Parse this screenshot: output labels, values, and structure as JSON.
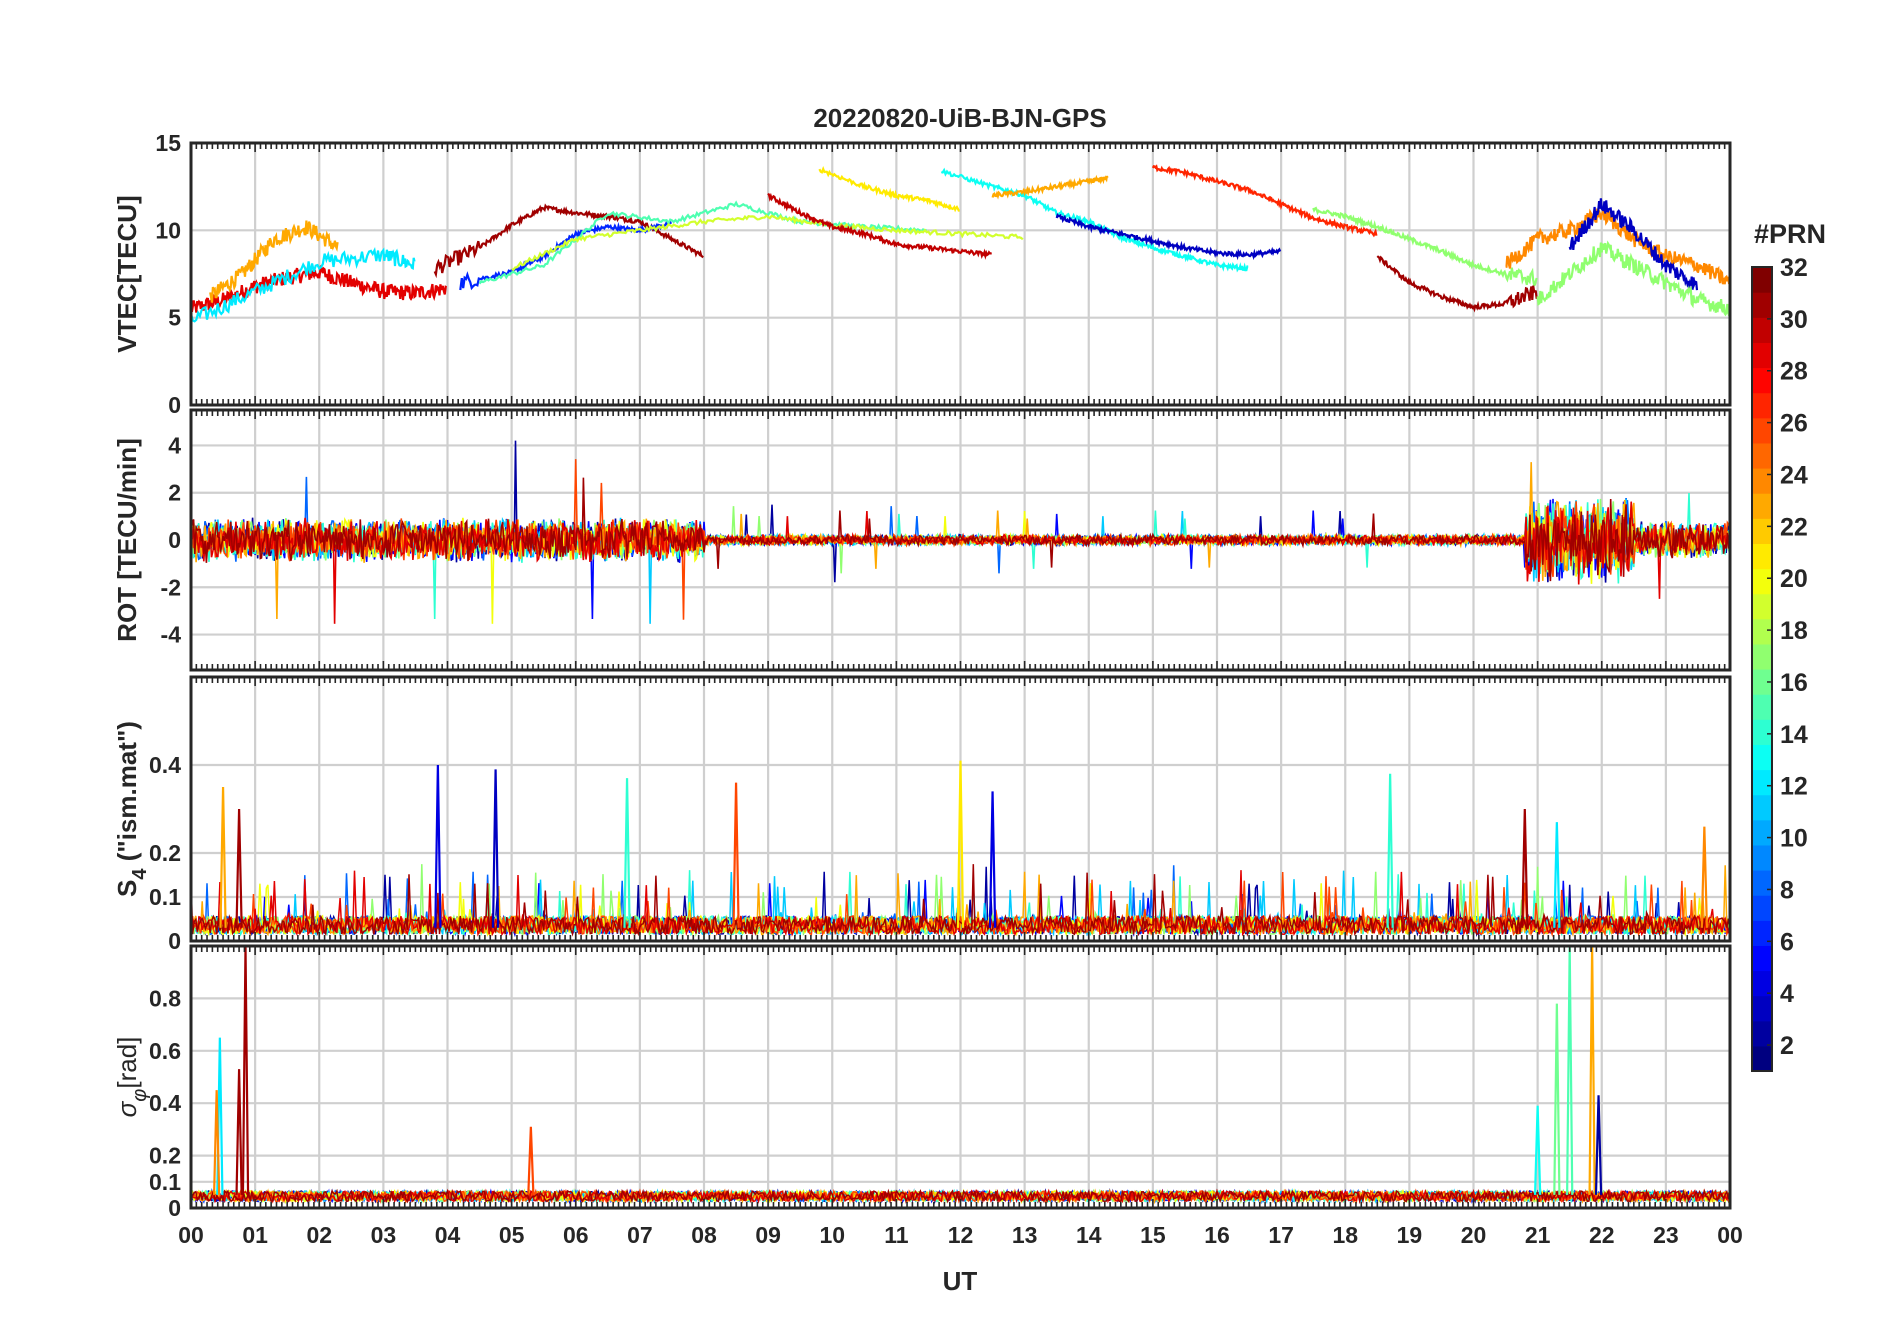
{
  "figure": {
    "title": "20220820-UiB-BJN-GPS",
    "xlabel": "UT",
    "x_tick_labels": [
      "00",
      "01",
      "02",
      "03",
      "04",
      "05",
      "06",
      "07",
      "08",
      "09",
      "10",
      "11",
      "12",
      "13",
      "14",
      "15",
      "16",
      "17",
      "18",
      "19",
      "20",
      "21",
      "22",
      "23",
      "00"
    ]
  },
  "colorbar": {
    "label": "#PRN",
    "range": [
      1,
      32
    ],
    "tick_labels": [
      "2",
      "4",
      "6",
      "8",
      "10",
      "12",
      "14",
      "16",
      "18",
      "20",
      "22",
      "24",
      "26",
      "28",
      "30",
      "32"
    ],
    "colormap": "jet",
    "colors": [
      "#00008f",
      "#0000ff",
      "#0080ff",
      "#00ffff",
      "#80ff80",
      "#ffff00",
      "#ff8000",
      "#ff0000",
      "#800000"
    ]
  },
  "chart_data": [
    {
      "type": "line",
      "panel": "VTEC",
      "ylabel": "VTEC[TECU]",
      "ylim": [
        0,
        15
      ],
      "y_tick_labels": [
        "0",
        "5",
        "10",
        "15"
      ],
      "xlim_hours": [
        0,
        24
      ],
      "grid": true,
      "series_by": "PRN color",
      "series": [
        {
          "prn": 29,
          "x": [
            0.0,
            0.5,
            1.0,
            1.5,
            2.0,
            2.5,
            3.0,
            3.5,
            4.0
          ],
          "y": [
            5.5,
            6.0,
            6.8,
            7.3,
            7.6,
            7.0,
            6.5,
            6.4,
            6.7
          ]
        },
        {
          "prn": 23,
          "x": [
            0.3,
            0.8,
            1.3,
            1.8,
            2.3
          ],
          "y": [
            6.2,
            7.5,
            9.5,
            10.2,
            9.0
          ]
        },
        {
          "prn": 12,
          "x": [
            0.0,
            1.0,
            2.0,
            3.0,
            3.5
          ],
          "y": [
            4.8,
            6.5,
            8.2,
            8.6,
            8.0
          ]
        },
        {
          "prn": 31,
          "x": [
            3.8,
            4.5,
            5.0,
            5.5,
            6.0,
            6.5,
            7.0,
            7.5,
            8.0
          ],
          "y": [
            7.8,
            9.0,
            10.3,
            11.3,
            11.0,
            10.8,
            10.5,
            9.5,
            8.5
          ]
        },
        {
          "prn": 6,
          "x": [
            4.2,
            5.0,
            5.5,
            6.0,
            6.5,
            7.0,
            7.5
          ],
          "y": [
            7.0,
            7.6,
            8.5,
            9.8,
            10.2,
            10.0,
            10.4
          ]
        },
        {
          "prn": 15,
          "x": [
            4.5,
            5.5,
            6.5,
            7.5,
            8.5,
            9.5,
            10.5,
            11.5
          ],
          "y": [
            7.0,
            8.0,
            11.0,
            10.5,
            11.5,
            10.5,
            10.2,
            10.0
          ]
        },
        {
          "prn": 19,
          "x": [
            5.0,
            6.0,
            7.0,
            8.0,
            9.0,
            10.0,
            11.0,
            12.0,
            13.0
          ],
          "y": [
            7.8,
            9.5,
            10.0,
            10.5,
            10.8,
            10.3,
            10.0,
            9.8,
            9.6
          ]
        },
        {
          "prn": 30,
          "x": [
            9.0,
            9.5,
            10.0,
            10.5,
            11.0,
            11.5,
            12.0,
            12.5
          ],
          "y": [
            12.0,
            11.0,
            10.2,
            9.8,
            9.2,
            9.0,
            8.8,
            8.6
          ]
        },
        {
          "prn": 21,
          "x": [
            9.8,
            10.5,
            11.0,
            11.5,
            12.0
          ],
          "y": [
            13.5,
            12.5,
            12.0,
            11.7,
            11.2
          ]
        },
        {
          "prn": 13,
          "x": [
            11.7,
            12.5,
            13.0,
            13.5,
            14.0,
            14.5,
            15.0,
            15.5,
            16.0,
            16.5
          ],
          "y": [
            13.4,
            12.5,
            12.0,
            11.0,
            10.5,
            9.6,
            9.0,
            8.5,
            8.0,
            7.8
          ]
        },
        {
          "prn": 23,
          "x": [
            12.5,
            13.0,
            13.5,
            14.0,
            14.3
          ],
          "y": [
            12.0,
            12.2,
            12.5,
            12.8,
            13.0
          ]
        },
        {
          "prn": 27,
          "x": [
            15.0,
            15.5,
            16.0,
            16.5,
            17.0,
            17.5,
            18.0,
            18.5
          ],
          "y": [
            13.6,
            13.3,
            12.8,
            12.3,
            11.5,
            10.7,
            10.2,
            9.8
          ]
        },
        {
          "prn": 3,
          "x": [
            13.5,
            14.0,
            14.5,
            15.0,
            15.5,
            16.0,
            16.5,
            17.0
          ],
          "y": [
            10.8,
            10.2,
            9.8,
            9.4,
            9.0,
            8.7,
            8.6,
            8.8
          ]
        },
        {
          "prn": 17,
          "x": [
            17.5,
            18.0,
            18.5,
            19.0,
            19.5,
            20.0,
            20.5,
            21.0
          ],
          "y": [
            11.2,
            10.8,
            10.2,
            9.5,
            8.8,
            8.0,
            7.5,
            7.2
          ]
        },
        {
          "prn": 31,
          "x": [
            18.5,
            19.0,
            19.5,
            20.0,
            20.5,
            21.0
          ],
          "y": [
            8.5,
            7.0,
            6.2,
            5.6,
            5.8,
            6.5
          ]
        },
        {
          "prn": 24,
          "x": [
            20.5,
            21.0,
            21.5,
            22.0,
            22.5,
            23.0,
            23.5,
            24.0
          ],
          "y": [
            8.0,
            9.5,
            10.0,
            11.0,
            9.5,
            8.5,
            8.0,
            7.0
          ]
        },
        {
          "prn": 3,
          "x": [
            21.5,
            22.0,
            22.5,
            23.0,
            23.5
          ],
          "y": [
            9.0,
            11.5,
            10.0,
            8.0,
            6.8
          ]
        },
        {
          "prn": 17,
          "x": [
            21.0,
            21.5,
            22.0,
            22.5,
            23.0,
            23.5,
            24.0
          ],
          "y": [
            6.0,
            7.5,
            9.0,
            8.0,
            7.0,
            6.0,
            5.5
          ]
        }
      ]
    },
    {
      "type": "line",
      "panel": "ROT",
      "ylabel": "ROT [TECU/min]",
      "ylim": [
        -5.5,
        5.5
      ],
      "y_tick_labels": [
        "-4",
        "-2",
        "0",
        "2",
        "4"
      ],
      "xlim_hours": [
        0,
        24
      ],
      "grid": true,
      "activity": [
        {
          "hours": [
            0,
            8
          ],
          "amplitude": 1.4,
          "max_peak": 4.3
        },
        {
          "hours": [
            8,
            20.8
          ],
          "amplitude": 0.35,
          "max_peak": 1.8
        },
        {
          "hours": [
            20.8,
            22.5
          ],
          "amplitude": 2.8,
          "max_peak": 5.3
        },
        {
          "hours": [
            22.5,
            24
          ],
          "amplitude": 1.2,
          "max_peak": 3.2
        }
      ]
    },
    {
      "type": "line",
      "panel": "S4",
      "ylabel": "S4 (\"ism.mat\")",
      "ylabel_main": "S",
      "ylabel_sub": "4",
      "ylabel_tail": " (\"ism.mat\")",
      "ylim": [
        0,
        0.6
      ],
      "y_tick_labels": [
        "0",
        "0.1",
        "0.2",
        "0.4"
      ],
      "xlim_hours": [
        0,
        24
      ],
      "grid": true,
      "baseline": 0.03,
      "peaks": [
        {
          "prn": 23,
          "x": 0.5,
          "y": 0.35
        },
        {
          "prn": 31,
          "x": 0.75,
          "y": 0.3
        },
        {
          "prn": 4,
          "x": 3.85,
          "y": 0.4
        },
        {
          "prn": 3,
          "x": 4.75,
          "y": 0.39
        },
        {
          "prn": 26,
          "x": 8.5,
          "y": 0.36
        },
        {
          "prn": 14,
          "x": 6.8,
          "y": 0.37
        },
        {
          "prn": 21,
          "x": 12.0,
          "y": 0.41
        },
        {
          "prn": 4,
          "x": 12.5,
          "y": 0.34
        },
        {
          "prn": 14,
          "x": 18.7,
          "y": 0.38
        },
        {
          "prn": 31,
          "x": 20.8,
          "y": 0.3
        },
        {
          "prn": 12,
          "x": 21.3,
          "y": 0.27
        },
        {
          "prn": 24,
          "x": 23.6,
          "y": 0.26
        }
      ]
    },
    {
      "type": "line",
      "panel": "sigma_phi",
      "ylabel": "σφ[rad]",
      "ylabel_main": "σ",
      "ylabel_sub": "φ",
      "ylabel_tail": "[rad]",
      "ylim": [
        0,
        1.0
      ],
      "y_tick_labels": [
        "0",
        "0.1",
        "0.2",
        "0.4",
        "0.6",
        "0.8"
      ],
      "xlim_hours": [
        0,
        24
      ],
      "grid": true,
      "baseline": 0.05,
      "peaks": [
        {
          "prn": 12,
          "x": 0.45,
          "y": 0.65
        },
        {
          "prn": 24,
          "x": 0.4,
          "y": 0.45
        },
        {
          "prn": 31,
          "x": 0.85,
          "y": 1.0
        },
        {
          "prn": 31,
          "x": 0.75,
          "y": 0.53
        },
        {
          "prn": 26,
          "x": 5.3,
          "y": 0.31
        },
        {
          "prn": 13,
          "x": 21.0,
          "y": 0.39
        },
        {
          "prn": 16,
          "x": 21.3,
          "y": 0.78
        },
        {
          "prn": 15,
          "x": 21.5,
          "y": 1.0
        },
        {
          "prn": 23,
          "x": 21.85,
          "y": 1.0
        },
        {
          "prn": 2,
          "x": 21.95,
          "y": 0.43
        }
      ]
    }
  ]
}
